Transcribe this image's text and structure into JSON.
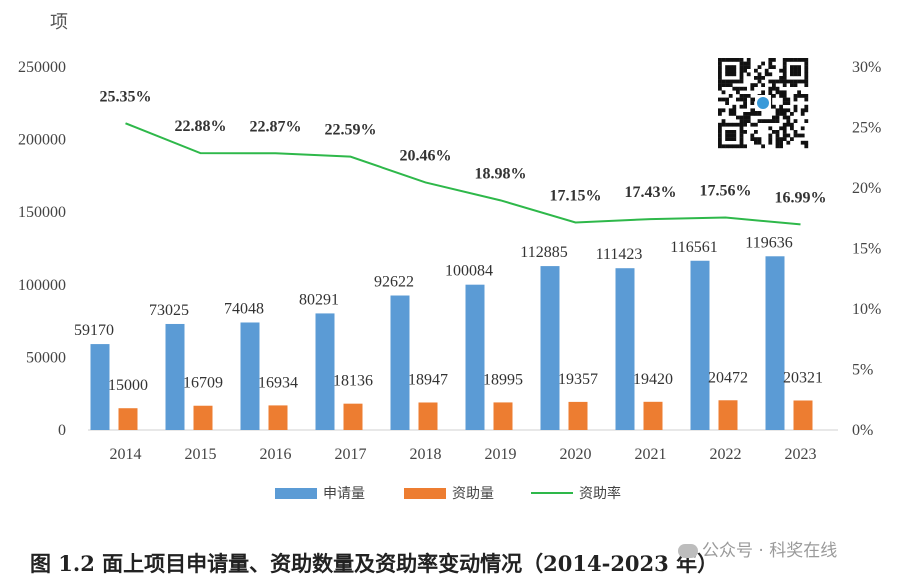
{
  "chart_data": {
    "type": "bar",
    "categories": [
      "2014",
      "2015",
      "2016",
      "2017",
      "2018",
      "2019",
      "2020",
      "2021",
      "2022",
      "2023"
    ],
    "series": [
      {
        "name": "申请量",
        "kind": "bar",
        "axis": "left",
        "color": "#5b9bd5",
        "values": [
          59170,
          73025,
          74048,
          80291,
          92622,
          100084,
          112885,
          111423,
          116561,
          119636
        ]
      },
      {
        "name": "资助量",
        "kind": "bar",
        "axis": "left",
        "color": "#ed7d31",
        "values": [
          15000,
          16709,
          16934,
          18136,
          18947,
          18995,
          19357,
          19420,
          20472,
          20321
        ]
      },
      {
        "name": "资助率",
        "kind": "line",
        "axis": "right",
        "color": "#2eb84a",
        "values": [
          25.35,
          22.88,
          22.87,
          22.59,
          20.46,
          18.98,
          17.15,
          17.43,
          17.56,
          16.99
        ],
        "labels": [
          "25.35%",
          "22.88%",
          "22.87%",
          "22.59%",
          "20.46%",
          "18.98%",
          "17.15%",
          "17.43%",
          "17.56%",
          "16.99%"
        ]
      }
    ],
    "left_axis": {
      "unit": "项",
      "ylim": [
        0,
        250000
      ],
      "ticks": [
        "0",
        "50000",
        "100000",
        "150000",
        "200000",
        "250000"
      ]
    },
    "right_axis": {
      "ylim": [
        0,
        30
      ],
      "ticks": [
        "0%",
        "5%",
        "10%",
        "15%",
        "20%",
        "25%",
        "30%"
      ]
    },
    "grid": false,
    "legend_position": "bottom"
  },
  "caption": "图 1.2 面上项目申请量、资助数量及资助率变动情况（2014-2023 年）",
  "watermark": "公众号 · 科奖在线"
}
